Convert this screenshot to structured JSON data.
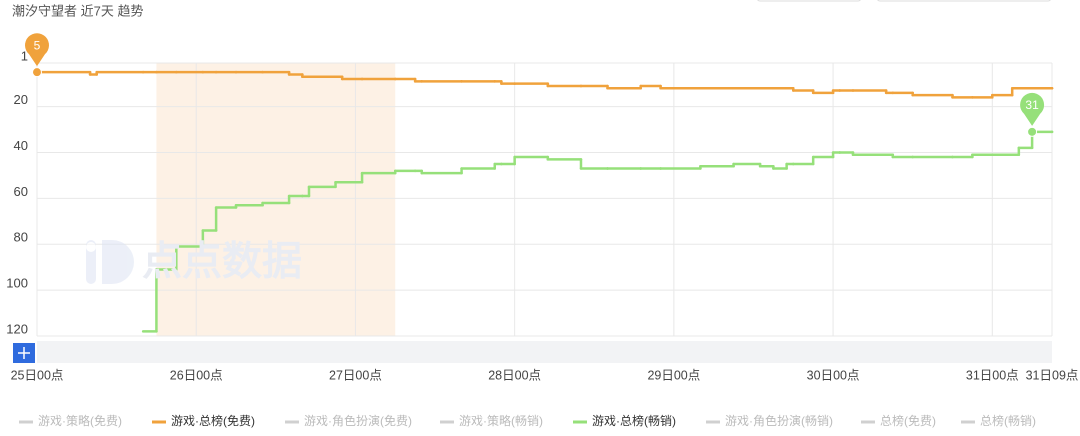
{
  "chart_data": {
    "type": "line",
    "title": "潮汐守望者 近7天 趋势",
    "watermark": "点点数据",
    "step": true,
    "grid": true,
    "highlight_range": [
      18,
      54
    ],
    "xlim": [
      0,
      153
    ],
    "xticks": [
      {
        "value": 0,
        "label": "25日00点"
      },
      {
        "value": 24,
        "label": "26日00点"
      },
      {
        "value": 48,
        "label": "27日00点"
      },
      {
        "value": 72,
        "label": "28日00点"
      },
      {
        "value": 96,
        "label": "29日00点"
      },
      {
        "value": 120,
        "label": "30日00点"
      },
      {
        "value": 144,
        "label": "31日00点"
      },
      {
        "value": 153,
        "label": "31日09点"
      }
    ],
    "ylim": [
      120,
      1
    ],
    "yticks": [
      1,
      20,
      40,
      60,
      80,
      100,
      120
    ],
    "x": [
      0,
      8,
      9,
      16,
      18,
      21,
      25,
      27,
      30,
      34,
      38,
      40,
      41,
      45,
      46,
      49,
      54,
      57,
      58,
      64,
      69,
      70,
      72,
      77,
      82,
      86,
      91,
      94,
      100,
      105,
      109,
      111,
      113,
      114,
      117,
      120,
      121,
      123,
      128,
      129,
      132,
      138,
      141,
      144,
      147,
      148,
      150,
      153
    ],
    "series": [
      {
        "name": "游戏·策略(免费)",
        "color": "#d0d0d0",
        "visible": false
      },
      {
        "name": "游戏·总榜(免费)",
        "color": "#f0a23c",
        "visible": true,
        "values": [
          5,
          6,
          5,
          5,
          5,
          5,
          5,
          5,
          5,
          5,
          6,
          7,
          7,
          7,
          8,
          8,
          8,
          9,
          9,
          9,
          9,
          10,
          10,
          11,
          11,
          12,
          11,
          12,
          12,
          12,
          12,
          12,
          12,
          13,
          14,
          13,
          13,
          13,
          14,
          14,
          15,
          16,
          16,
          15,
          12,
          12,
          12,
          12
        ]
      },
      {
        "name": "游戏·角色扮演(免费)",
        "color": "#d0d0d0",
        "visible": false
      },
      {
        "name": "游戏·策略(畅销)",
        "color": "#d0d0d0",
        "visible": false
      },
      {
        "name": "游戏·总榜(畅销)",
        "color": "#96e07a",
        "visible": true,
        "values": [
          null,
          null,
          null,
          118,
          91,
          81,
          74,
          64,
          63,
          62,
          59,
          59,
          55,
          53,
          53,
          49,
          48,
          48,
          49,
          47,
          45,
          45,
          42,
          43,
          47,
          47,
          47,
          47,
          46,
          45,
          46,
          47,
          45,
          45,
          42,
          40,
          40,
          41,
          41,
          42,
          42,
          42,
          41,
          41,
          41,
          38,
          31,
          31
        ]
      },
      {
        "name": "游戏·角色扮演(畅销)",
        "color": "#d0d0d0",
        "visible": false
      },
      {
        "name": "总榜(免费)",
        "color": "#d0d0d0",
        "visible": false
      },
      {
        "name": "总榜(畅销)",
        "color": "#d0d0d0",
        "visible": false
      }
    ]
  }
}
